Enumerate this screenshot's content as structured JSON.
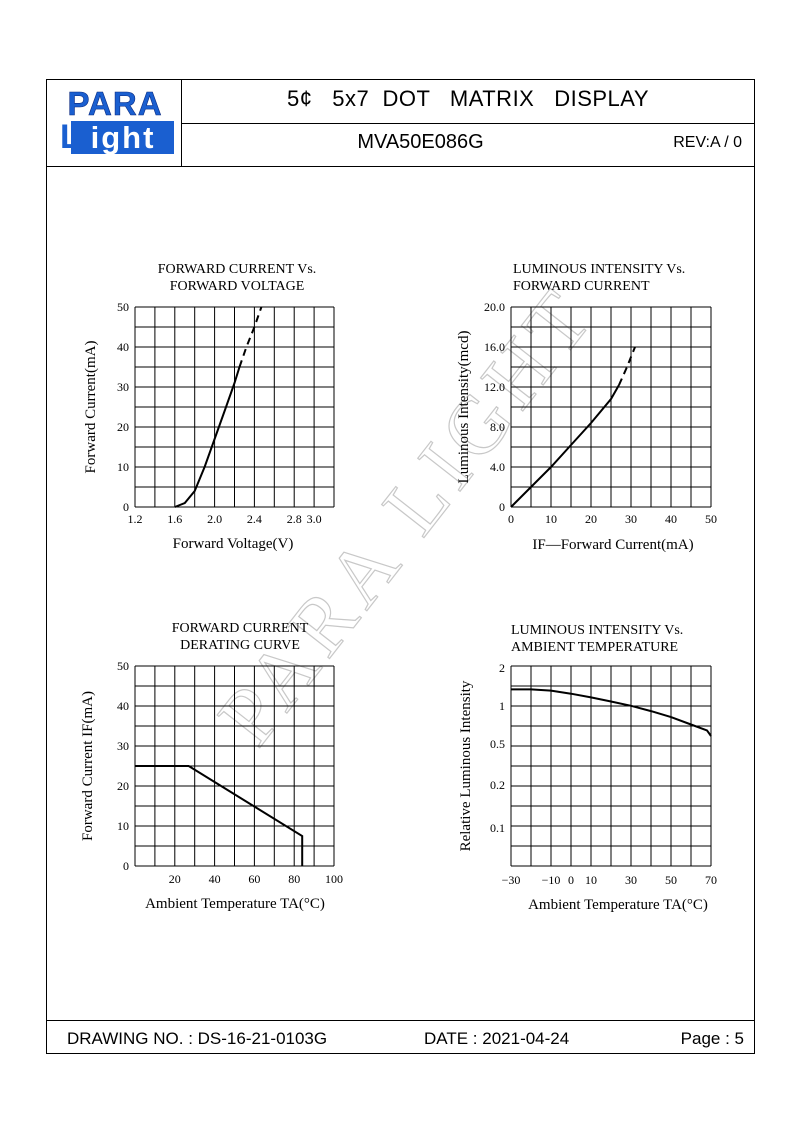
{
  "header": {
    "logo_top": "PARA",
    "logo_bottom": "ight",
    "logo_letter": "L",
    "product_title": "5¢   5x7  DOT   MATRIX   DISPLAY",
    "model": "MVA50E086G",
    "revision": "REV:A / 0"
  },
  "watermark": "PARA LIGHT",
  "footer": {
    "drawing_no": "DRAWING NO. : DS-16-21-0103G",
    "date": "DATE : 2021-04-24",
    "page": "Page : 5"
  },
  "chart_data": [
    {
      "type": "line",
      "title": [
        "FORWARD  CURRENT  Vs.",
        "FORWARD  VOLTAGE"
      ],
      "xlabel": "Forward  Voltage(V)",
      "ylabel": "Forward  Current(mA)",
      "xticks": [
        "1.2",
        "1.6",
        "2.0",
        "2.4",
        "2.8",
        "3.0"
      ],
      "yticks": [
        "0",
        "10",
        "20",
        "30",
        "40",
        "50"
      ],
      "xlim": [
        1.2,
        3.2
      ],
      "ylim": [
        0,
        50
      ],
      "grid": true,
      "series": [
        {
          "style": "solid",
          "x": [
            1.6,
            1.7,
            1.8,
            1.9,
            2.0,
            2.1,
            2.2,
            2.25
          ],
          "y": [
            0,
            1,
            4,
            10,
            17,
            24,
            31,
            35
          ]
        },
        {
          "style": "dashed",
          "x": [
            2.25,
            2.32,
            2.4,
            2.47
          ],
          "y": [
            35,
            40,
            45,
            50
          ]
        }
      ]
    },
    {
      "type": "line",
      "title": [
        "LUMINOUS  INTENSITY  Vs.",
        "FORWARD  CURRENT"
      ],
      "xlabel": "IF—Forward  Current(mA)",
      "ylabel": "Luminous  Intensity(mcd)",
      "xticks": [
        "0",
        "10",
        "20",
        "30",
        "40",
        "50"
      ],
      "yticks": [
        "0",
        "4.0",
        "8.0",
        "12.0",
        "16.0",
        "20.0"
      ],
      "xlim": [
        0,
        50
      ],
      "ylim": [
        0,
        20
      ],
      "grid": true,
      "series": [
        {
          "style": "solid",
          "x": [
            0,
            5,
            10,
            15,
            20,
            25,
            27
          ],
          "y": [
            0,
            2.0,
            4.0,
            6.2,
            8.4,
            10.8,
            12.2
          ]
        },
        {
          "style": "dashed",
          "x": [
            27,
            29,
            31
          ],
          "y": [
            12.2,
            14.0,
            16.0
          ]
        }
      ]
    },
    {
      "type": "line",
      "title": [
        "FORWARD  CURRENT",
        "DERATING  CURVE"
      ],
      "xlabel": "Ambient  Temperature  TA(°C)",
      "ylabel": "Forward  Current  IF(mA)",
      "xticks": [
        "20",
        "40",
        "60",
        "80",
        "100"
      ],
      "yticks": [
        "0",
        "10",
        "20",
        "30",
        "40",
        "50"
      ],
      "xlim": [
        0,
        100
      ],
      "ylim": [
        0,
        50
      ],
      "grid": true,
      "series": [
        {
          "style": "solid",
          "x": [
            0,
            27,
            84,
            84
          ],
          "y": [
            25,
            25,
            7.5,
            0
          ]
        }
      ]
    },
    {
      "type": "line",
      "title": [
        "LUMINOUS  INTENSITY  Vs.",
        "AMBIENT  TEMPERATURE"
      ],
      "xlabel": "Ambient  Temperature  TA(°C)",
      "ylabel": "Relative  Luminous  Intensity",
      "xticks": [
        "−30",
        "−10",
        "0",
        "10",
        "30",
        "50",
        "70"
      ],
      "yticks": [
        "2",
        "1",
        "0.5",
        "0.2",
        "0.1"
      ],
      "xlim": [
        -30,
        70
      ],
      "ylim": [
        0.05,
        2
      ],
      "scale": "log",
      "grid": true,
      "series": [
        {
          "style": "solid",
          "x": [
            -30,
            -20,
            -10,
            0,
            10,
            20,
            30,
            40,
            50,
            60,
            68,
            70
          ],
          "y": [
            1.3,
            1.3,
            1.27,
            1.2,
            1.12,
            1.04,
            0.96,
            0.87,
            0.78,
            0.68,
            0.61,
            0.55
          ]
        }
      ]
    }
  ]
}
